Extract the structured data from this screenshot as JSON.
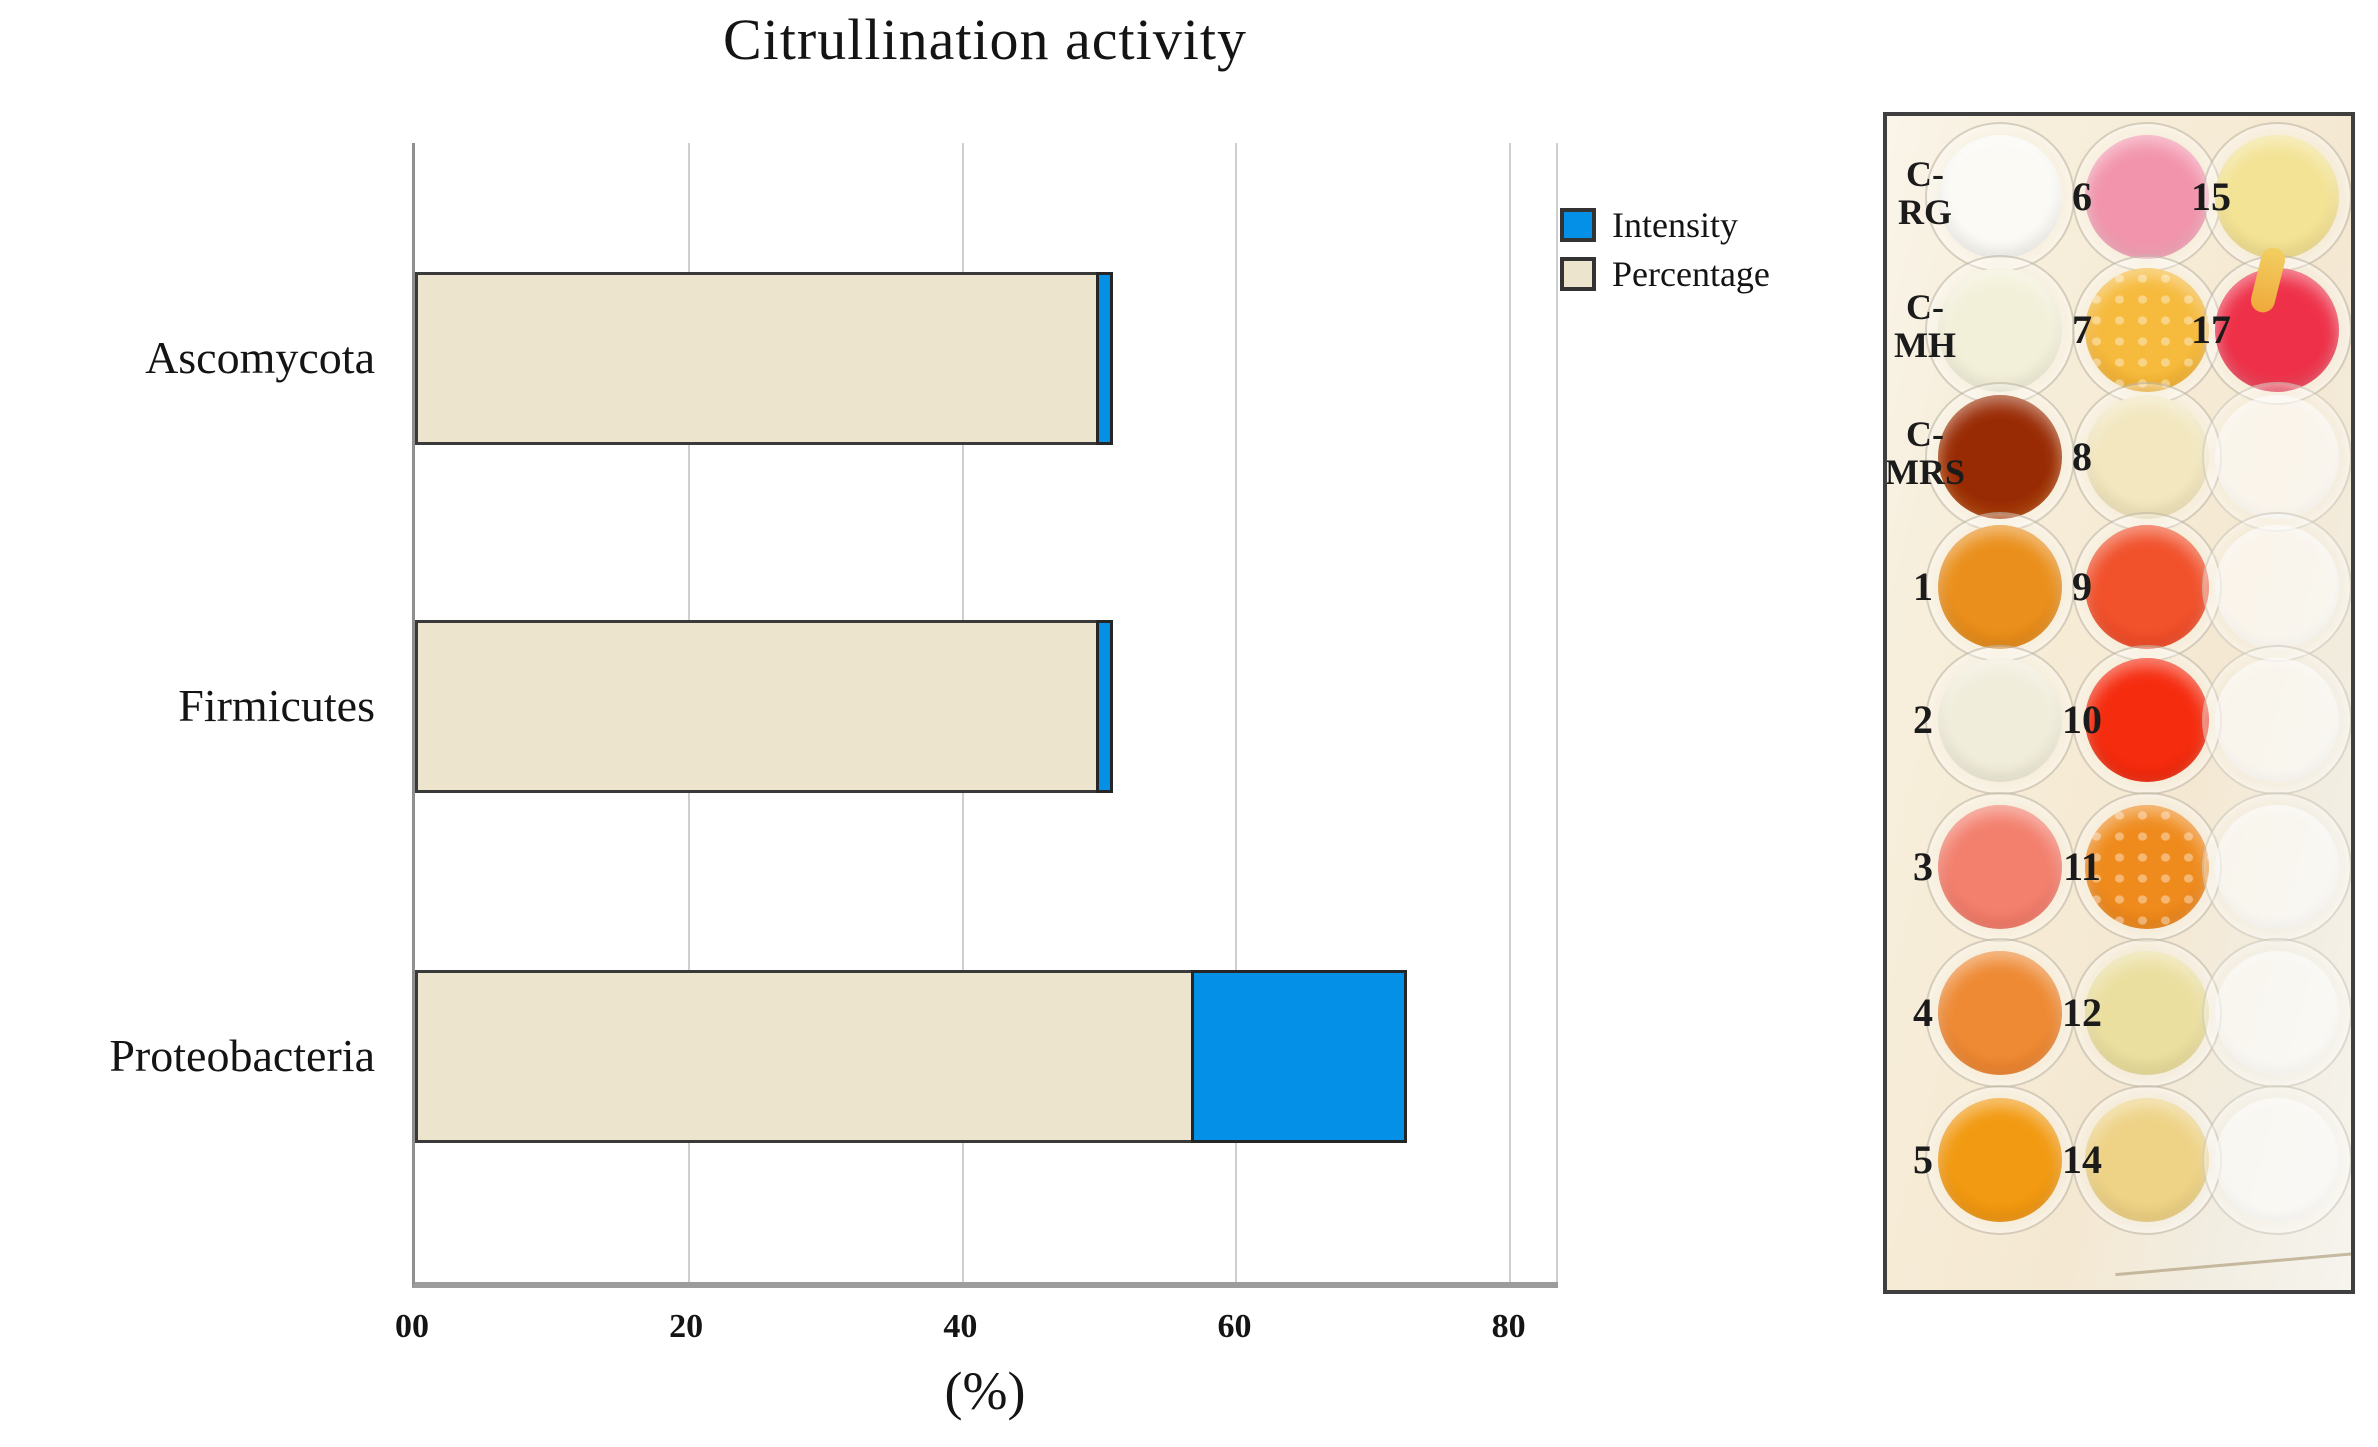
{
  "figure": {
    "title": "Citrullination activity"
  },
  "chart_data": {
    "type": "bar",
    "orientation": "horizontal",
    "stacked": true,
    "title": "Citrullination activity",
    "xlabel": "(%)",
    "categories": [
      "Ascomycota",
      "Firmicutes",
      "Proteobacteria"
    ],
    "series": [
      {
        "name": "Percentage",
        "values": [
          50,
          50,
          57
        ],
        "color": "#ece4cd"
      },
      {
        "name": "Intensity",
        "values": [
          1.3,
          1.3,
          15.8
        ],
        "color": "#0590e8"
      }
    ],
    "stacked_totals": [
      51.3,
      51.3,
      72.8
    ],
    "xlim": [
      0,
      83.6
    ],
    "xticks": [
      0,
      20,
      40,
      60,
      80
    ],
    "xtick_labels": [
      "00",
      "20",
      "40",
      "60",
      "80"
    ],
    "grid": true,
    "right_boundary_gridline": true,
    "legend_position": "upper-right-outside"
  },
  "legend": {
    "items": [
      {
        "label": "Intensity",
        "color": "#0590e8"
      },
      {
        "label": "Percentage",
        "color": "#ece4cd"
      }
    ]
  },
  "colors": {
    "bar_border": "#3a3a3a",
    "gridline": "#cfcfcf",
    "axis_line": "#9c9c9c",
    "y_axis_line": "#8f8f8f",
    "text": "#141414",
    "plate_border": "#3f3f3f"
  },
  "plate": {
    "wells": [
      {
        "row": 1,
        "col": 1,
        "label_lines": [
          "C-",
          "RG"
        ],
        "kind": "control",
        "fill": "#fbfaf5",
        "rim": "#eeece4"
      },
      {
        "row": 1,
        "col": 2,
        "label_lines": [
          "6"
        ],
        "kind": "sample",
        "fill": "#f294ab",
        "rim": "#f6bdca"
      },
      {
        "row": 1,
        "col": 3,
        "label_lines": [
          "15"
        ],
        "kind": "sample",
        "fill": "#f3e395",
        "rim": "#eed67f"
      },
      {
        "row": 2,
        "col": 1,
        "label_lines": [
          "C-",
          "MH"
        ],
        "kind": "control",
        "fill": "#f3f0da",
        "rim": "#ebe8d0"
      },
      {
        "row": 2,
        "col": 2,
        "label_lines": [
          "7"
        ],
        "kind": "sample",
        "fill": "#f6ba3c",
        "rim": "#efa41e",
        "texture": "bubbles"
      },
      {
        "row": 2,
        "col": 3,
        "label_lines": [
          "17"
        ],
        "kind": "sample",
        "fill": "#ee3149",
        "rim": "#f16072",
        "streak": true
      },
      {
        "row": 3,
        "col": 1,
        "label_lines": [
          "C-",
          "MRS"
        ],
        "kind": "control",
        "fill": "#992b04",
        "rim": "#c85d0c"
      },
      {
        "row": 3,
        "col": 2,
        "label_lines": [
          "8"
        ],
        "kind": "sample",
        "fill": "#f2e7bf",
        "rim": "#eddcab"
      },
      {
        "row": 3,
        "col": 3,
        "kind": "empty"
      },
      {
        "row": 4,
        "col": 1,
        "label_lines": [
          "1"
        ],
        "kind": "sample",
        "fill": "#ea8f1b",
        "rim": "#dd7d10"
      },
      {
        "row": 4,
        "col": 2,
        "label_lines": [
          "9"
        ],
        "kind": "sample",
        "fill": "#f1512b",
        "rim": "#ee3d19"
      },
      {
        "row": 4,
        "col": 3,
        "kind": "empty"
      },
      {
        "row": 5,
        "col": 1,
        "label_lines": [
          "2"
        ],
        "kind": "sample",
        "fill": "#f1eddb",
        "rim": "#eae4cd"
      },
      {
        "row": 5,
        "col": 2,
        "label_lines": [
          "10"
        ],
        "kind": "sample",
        "fill": "#f62c0f",
        "rim": "#ea2305"
      },
      {
        "row": 5,
        "col": 3,
        "kind": "empty"
      },
      {
        "row": 6,
        "col": 1,
        "label_lines": [
          "3"
        ],
        "kind": "sample",
        "fill": "#f37f6d",
        "rim": "#f06a59"
      },
      {
        "row": 6,
        "col": 2,
        "label_lines": [
          "11"
        ],
        "kind": "sample",
        "fill": "#ef8b1d",
        "rim": "#e97c12",
        "texture": "bubbles"
      },
      {
        "row": 6,
        "col": 3,
        "kind": "empty"
      },
      {
        "row": 7,
        "col": 1,
        "label_lines": [
          "4"
        ],
        "kind": "sample",
        "fill": "#ee8a34",
        "rim": "#e97620"
      },
      {
        "row": 7,
        "col": 2,
        "label_lines": [
          "12"
        ],
        "kind": "sample",
        "fill": "#ebdfa0",
        "rim": "#e5d68c"
      },
      {
        "row": 7,
        "col": 3,
        "kind": "empty"
      },
      {
        "row": 8,
        "col": 1,
        "label_lines": [
          "5"
        ],
        "kind": "sample",
        "fill": "#f29a11",
        "rim": "#ec8b06"
      },
      {
        "row": 8,
        "col": 2,
        "label_lines": [
          "14"
        ],
        "kind": "sample",
        "fill": "#eed387",
        "rim": "#e8c973"
      },
      {
        "row": 8,
        "col": 3,
        "kind": "empty"
      }
    ]
  }
}
